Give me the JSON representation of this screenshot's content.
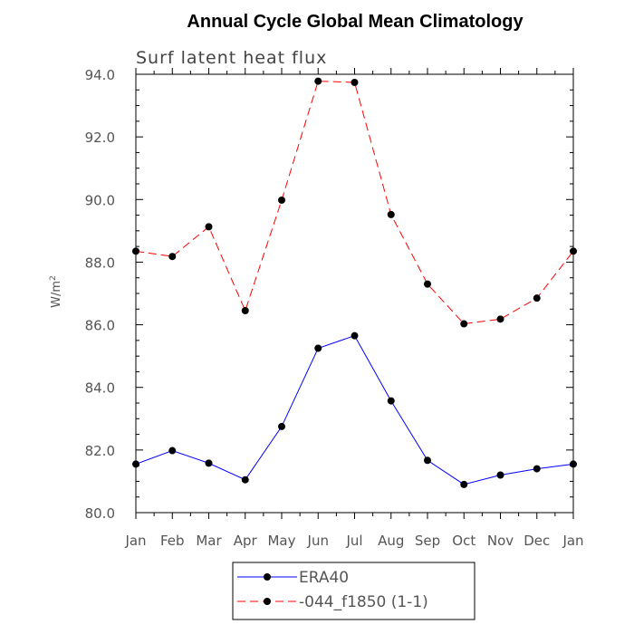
{
  "chart_data": {
    "type": "line",
    "title": "Annual Cycle Global Mean Climatology",
    "subtitle": "Surf latent heat flux",
    "ylabel": "W/m",
    "ylabel_sup": "2",
    "xlabel": "",
    "categories": [
      "Jan",
      "Feb",
      "Mar",
      "Apr",
      "May",
      "Jun",
      "Jul",
      "Aug",
      "Sep",
      "Oct",
      "Nov",
      "Dec",
      "Jan"
    ],
    "ylim": [
      80.0,
      94.0
    ],
    "yticks": [
      "80.0",
      "82.0",
      "84.0",
      "86.0",
      "88.0",
      "90.0",
      "92.0",
      "94.0"
    ],
    "grid": false,
    "legend_position": "bottom",
    "series": [
      {
        "name": "ERA40",
        "color": "#0000ff",
        "dash": "solid",
        "values": [
          81.55,
          81.98,
          81.58,
          81.05,
          82.75,
          85.25,
          85.65,
          83.57,
          81.67,
          80.9,
          81.2,
          81.4,
          81.55
        ]
      },
      {
        "name": "-044_f1850 (1-1)",
        "color": "#ff0000",
        "dash": "dashed",
        "values": [
          88.35,
          88.18,
          89.13,
          86.45,
          89.98,
          93.78,
          93.74,
          89.52,
          87.3,
          86.03,
          86.18,
          86.85,
          88.35
        ]
      }
    ]
  }
}
